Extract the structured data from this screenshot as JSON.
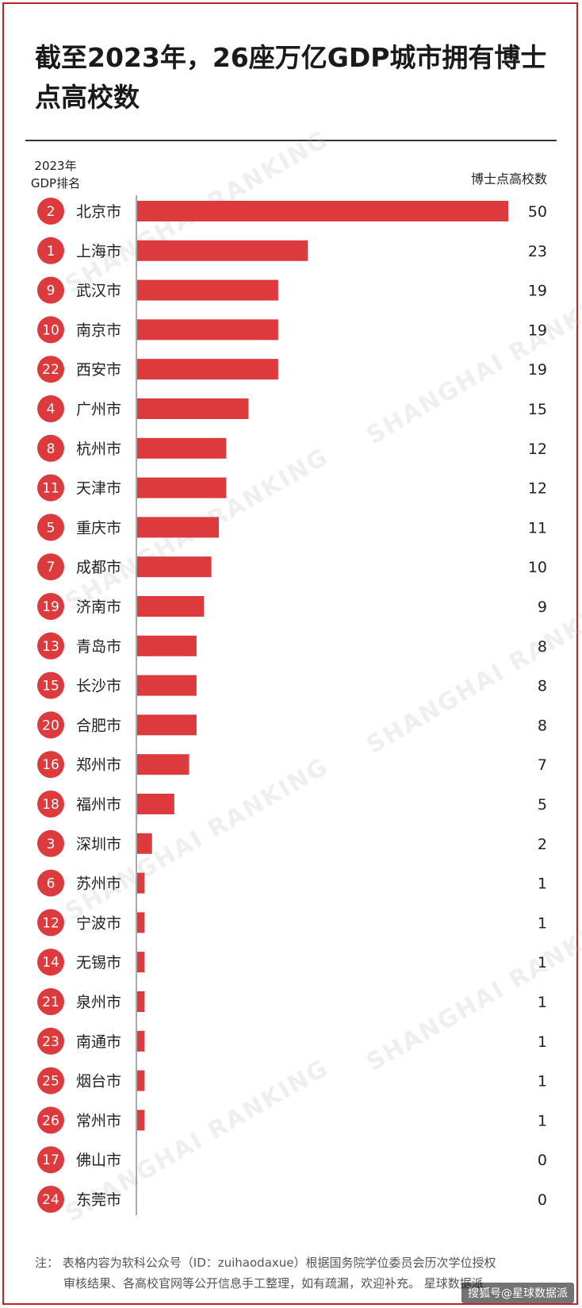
{
  "title": "截至2023年，26座万亿GDP城市拥有博士点高校数",
  "rank_header": "2023年GDP排名",
  "value_header": "博士点高校数",
  "watermark": "SHANGHAI RANKING",
  "colors": {
    "bar": "#dc3a3d",
    "badge": "#dc3a3d",
    "accent": "#b8262a"
  },
  "chart_data": {
    "type": "bar",
    "orientation": "horizontal",
    "categories": [
      "北京市",
      "上海市",
      "武汉市",
      "南京市",
      "西安市",
      "广州市",
      "杭州市",
      "天津市",
      "重庆市",
      "成都市",
      "济南市",
      "青岛市",
      "长沙市",
      "合肥市",
      "郑州市",
      "福州市",
      "深圳市",
      "苏州市",
      "宁波市",
      "无锡市",
      "泉州市",
      "南通市",
      "烟台市",
      "常州市",
      "佛山市",
      "东莞市"
    ],
    "gdp_rank": [
      "2",
      "1",
      "9",
      "10",
      "22",
      "4",
      "8",
      "11",
      "5",
      "7",
      "19",
      "13",
      "15",
      "20",
      "16",
      "18",
      "3",
      "6",
      "12",
      "14",
      "21",
      "23",
      "25",
      "26",
      "17",
      "24"
    ],
    "values": [
      50,
      23,
      19,
      19,
      19,
      15,
      12,
      12,
      11,
      10,
      9,
      8,
      8,
      8,
      7,
      5,
      2,
      1,
      1,
      1,
      1,
      1,
      1,
      1,
      0,
      0
    ],
    "xlim": [
      0,
      50
    ],
    "legend": "none",
    "grid": false
  },
  "footer": {
    "line1": "注：  表格内容为软科公众号（ID：zuihaodaxue）根据国务院学位委员会历次学位授权",
    "line2": "审核结果、各高校官网等公开信息手工整理，如有疏漏，欢迎补充。 星球数据派"
  },
  "badge": "搜狐号@星球数据派"
}
